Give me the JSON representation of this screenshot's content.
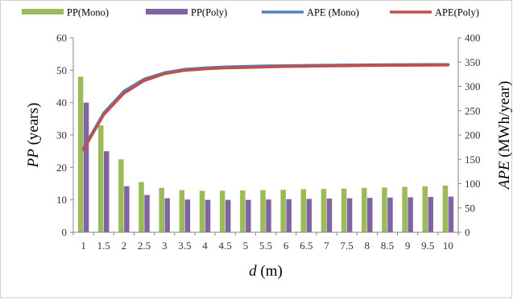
{
  "chart_data": {
    "type": "bar",
    "categories": [
      "1",
      "1.5",
      "2",
      "2.5",
      "3",
      "3.5",
      "4",
      "4.5",
      "5",
      "5.5",
      "6",
      "6.5",
      "7",
      "7.5",
      "8",
      "8.5",
      "9",
      "9.5",
      "10"
    ],
    "series": [
      {
        "name": "PP(Mono)",
        "kind": "bar",
        "axis": "left",
        "color": "#9bbb59",
        "values": [
          48,
          33,
          22.5,
          15.5,
          13.7,
          13,
          12.8,
          12.8,
          12.9,
          13,
          13.1,
          13.3,
          13.4,
          13.5,
          13.7,
          13.8,
          14,
          14.2,
          14.4
        ]
      },
      {
        "name": "PP(Poly)",
        "kind": "bar",
        "axis": "left",
        "color": "#8064a2",
        "values": [
          40,
          25,
          14.2,
          11.5,
          10.5,
          10.1,
          10,
          10,
          10,
          10.1,
          10.2,
          10.3,
          10.4,
          10.5,
          10.6,
          10.7,
          10.8,
          10.9,
          11
        ]
      },
      {
        "name": "APE (Mono)",
        "kind": "line",
        "axis": "right",
        "color": "#4f81bd",
        "values": [
          172,
          245,
          290,
          315,
          328,
          335,
          338,
          340,
          341,
          342,
          342.5,
          343,
          343.5,
          344,
          344.2,
          344.5,
          344.7,
          344.9,
          345
        ]
      },
      {
        "name": "APE(Poly)",
        "kind": "line",
        "axis": "right",
        "color": "#c0504d",
        "values": [
          170,
          242,
          286,
          312,
          326,
          333,
          336,
          338,
          339,
          340,
          341,
          341.5,
          342,
          342.5,
          343,
          343.2,
          343.5,
          343.7,
          344
        ]
      }
    ],
    "xlabel": {
      "italic": "d",
      "rest": " (m)"
    },
    "ylabel_left": {
      "italic": "PP",
      "rest": " (years)"
    },
    "ylabel_right": {
      "italic": "APE",
      "rest": " (MWh/year)"
    },
    "ylim_left": [
      0,
      60
    ],
    "ylim_right": [
      0,
      400
    ],
    "yticks_left": [
      0,
      10,
      20,
      30,
      40,
      50,
      60
    ],
    "yticks_right": [
      0,
      50,
      100,
      150,
      200,
      250,
      300,
      350,
      400
    ],
    "grid": false,
    "legend_position": "top"
  }
}
